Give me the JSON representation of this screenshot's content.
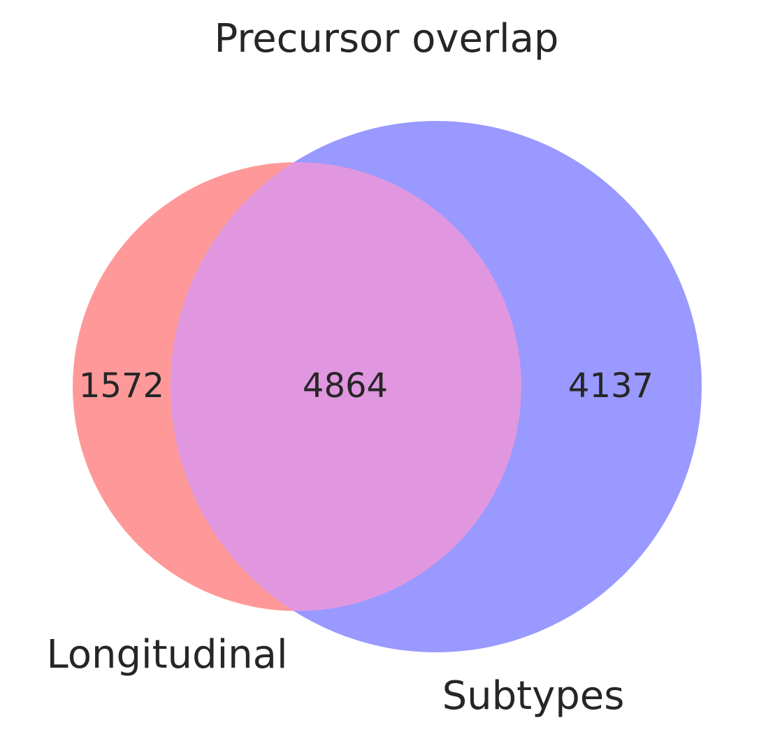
{
  "chart_data": {
    "type": "venn",
    "title": "Precursor overlap",
    "sets": [
      {
        "name": "Longitudinal",
        "only_count": "1572",
        "color": "#ff9999"
      },
      {
        "name": "Subtypes",
        "only_count": "4137",
        "color": "#9999ff"
      }
    ],
    "intersection": {
      "count": "4864",
      "color": "#e097e0"
    }
  }
}
